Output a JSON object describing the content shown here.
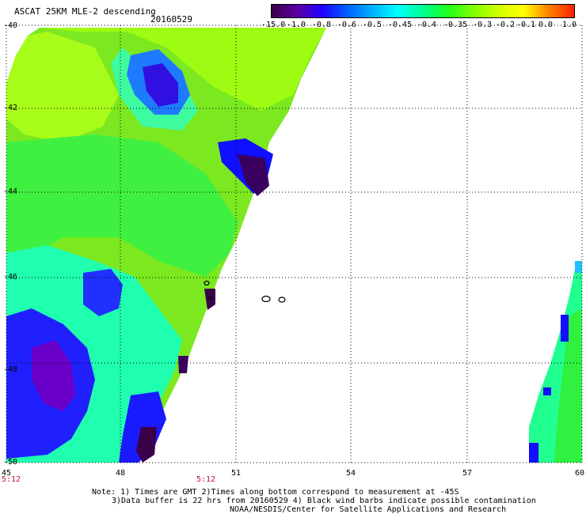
{
  "header": {
    "title": "ASCAT 25KM MLE-2 descending",
    "date": "20160529"
  },
  "colorbar": {
    "labels": [
      "-15.0",
      "-1.0",
      "-0.8",
      "-0.6",
      "-0.5",
      "-0.45",
      "-0.4",
      "-0.35",
      "-0.3",
      "-0.2",
      "-0.1",
      "0.0",
      "1.0"
    ],
    "colors": [
      "#3a0048",
      "#5a00a0",
      "#2000ff",
      "#0060ff",
      "#00b0ff",
      "#00ffff",
      "#00ff90",
      "#20ff20",
      "#80ff00",
      "#d0ff00",
      "#ffff00",
      "#ff8000",
      "#ff2000"
    ]
  },
  "axes": {
    "lat_labels": [
      "-40",
      "-42",
      "-44",
      "-46",
      "-48",
      "-50"
    ],
    "lon_labels": [
      "45",
      "48",
      "51",
      "54",
      "57",
      "60"
    ]
  },
  "time_labels": [
    "5:12",
    "5:12"
  ],
  "notes": [
    "Note: 1) Times are GMT 2)Times along bottom correspond to measurement at -45S",
    "3)Data buffer is 22 hrs from 20160529 4) Black wind barbs indicate possible contamination",
    "NOAA/NESDIS/Center for Satellite Applications and Research"
  ]
}
